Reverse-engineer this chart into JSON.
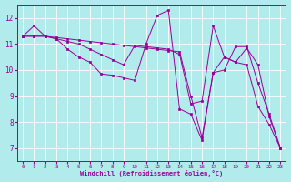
{
  "xlabel": "Windchill (Refroidissement éolien,°C)",
  "background_color": "#b2ebeb",
  "line_color": "#990099",
  "grid_color": "#ffffff",
  "xlim": [
    -0.5,
    23.5
  ],
  "ylim": [
    6.5,
    12.5
  ],
  "yticks": [
    7,
    8,
    9,
    10,
    11,
    12
  ],
  "xticks": [
    0,
    1,
    2,
    3,
    4,
    5,
    6,
    7,
    8,
    9,
    10,
    11,
    12,
    13,
    14,
    15,
    16,
    17,
    18,
    19,
    20,
    21,
    22,
    23
  ],
  "series": [
    [
      11.3,
      11.7,
      11.3,
      11.2,
      10.8,
      10.5,
      10.3,
      9.85,
      9.8,
      9.7,
      9.6,
      11.0,
      12.1,
      12.3,
      8.5,
      8.3,
      7.3,
      9.9,
      10.5,
      10.3,
      10.2,
      8.6,
      7.9,
      7.0
    ],
    [
      11.3,
      11.3,
      11.3,
      11.2,
      11.1,
      11.0,
      10.8,
      10.6,
      10.4,
      10.2,
      10.95,
      10.9,
      10.85,
      10.8,
      10.6,
      8.7,
      8.8,
      11.7,
      10.5,
      10.3,
      10.85,
      10.2,
      8.2,
      7.0
    ],
    [
      11.3,
      11.3,
      11.3,
      11.25,
      11.2,
      11.15,
      11.1,
      11.05,
      11.0,
      10.95,
      10.9,
      10.85,
      10.8,
      10.75,
      10.7,
      9.0,
      7.4,
      9.9,
      10.0,
      10.9,
      10.9,
      9.5,
      8.3,
      7.0
    ]
  ]
}
